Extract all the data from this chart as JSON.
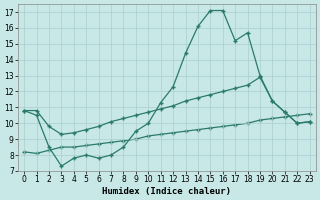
{
  "xlabel": "Humidex (Indice chaleur)",
  "xlim": [
    -0.5,
    23.5
  ],
  "ylim": [
    7,
    17.5
  ],
  "yticks": [
    7,
    8,
    9,
    10,
    11,
    12,
    13,
    14,
    15,
    16,
    17
  ],
  "xticks": [
    0,
    1,
    2,
    3,
    4,
    5,
    6,
    7,
    8,
    9,
    10,
    11,
    12,
    13,
    14,
    15,
    16,
    17,
    18,
    19,
    20,
    21,
    22,
    23
  ],
  "bg_color": "#c8e8e8",
  "line_color": "#2a7a6a",
  "grid_color": "#aacece",
  "line1_x": [
    0,
    1,
    2,
    3,
    4,
    5,
    6,
    7,
    8,
    9,
    10,
    11,
    12,
    13,
    14,
    15,
    16,
    17,
    18,
    19,
    20,
    21,
    22,
    23
  ],
  "line1_y": [
    10.8,
    10.5,
    8.5,
    7.3,
    7.8,
    8.0,
    7.8,
    8.0,
    8.5,
    9.5,
    10.0,
    11.3,
    12.3,
    14.4,
    16.1,
    17.1,
    17.1,
    15.2,
    15.7,
    13.0,
    11.4,
    10.7,
    10.0,
    10.1
  ],
  "line2_x": [
    0,
    1,
    2,
    3,
    4,
    5,
    6,
    7,
    8,
    9,
    10,
    11,
    12,
    13,
    14,
    15,
    16,
    17,
    18,
    19,
    20,
    21,
    22,
    23
  ],
  "line2_y": [
    10.8,
    10.8,
    9.8,
    9.3,
    9.4,
    9.6,
    9.8,
    10.1,
    10.3,
    10.5,
    10.7,
    10.9,
    11.1,
    11.4,
    11.6,
    11.8,
    12.0,
    12.2,
    12.4,
    12.9,
    11.4,
    10.7,
    10.0,
    10.1
  ],
  "line3_x": [
    0,
    1,
    2,
    3,
    4,
    5,
    6,
    7,
    8,
    9,
    10,
    11,
    12,
    13,
    14,
    15,
    16,
    17,
    18,
    19,
    20,
    21,
    22,
    23
  ],
  "line3_y": [
    8.2,
    8.1,
    8.3,
    8.5,
    8.5,
    8.6,
    8.7,
    8.8,
    8.9,
    9.0,
    9.2,
    9.3,
    9.4,
    9.5,
    9.6,
    9.7,
    9.8,
    9.9,
    10.0,
    10.2,
    10.3,
    10.4,
    10.5,
    10.6
  ]
}
